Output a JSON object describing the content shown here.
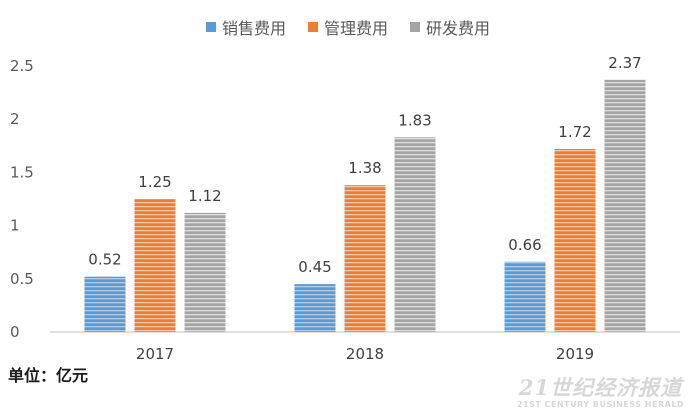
{
  "chart_data": {
    "type": "bar",
    "categories": [
      "2017",
      "2018",
      "2019"
    ],
    "series": [
      {
        "name": "销售费用",
        "values": [
          0.52,
          0.45,
          0.66
        ],
        "color": "#5b9bd5",
        "stripe": "#a9cdef"
      },
      {
        "name": "管理费用",
        "values": [
          1.25,
          1.38,
          1.72
        ],
        "color": "#ed7d31",
        "stripe": "#f8c4a0"
      },
      {
        "name": "研发费用",
        "values": [
          1.12,
          1.83,
          2.37
        ],
        "color": "#a5a5a5",
        "stripe": "#dcdcdc"
      }
    ],
    "data_labels": [
      [
        "0.52",
        "0.45",
        "0.66"
      ],
      [
        "1.25",
        "1.38",
        "1.72"
      ],
      [
        "1.12",
        "1.83",
        "2.37"
      ]
    ],
    "yticks": [
      "0",
      "0.5",
      "1",
      "1.5",
      "2",
      "2.5"
    ],
    "ylim": [
      0,
      2.5
    ],
    "grid": false,
    "legend_position": "top-center",
    "unit_label": "单位：亿元"
  },
  "watermark": {
    "main": "21世纪经济报道",
    "sub": "21ST CENTURY BUSINESS HERALD"
  }
}
